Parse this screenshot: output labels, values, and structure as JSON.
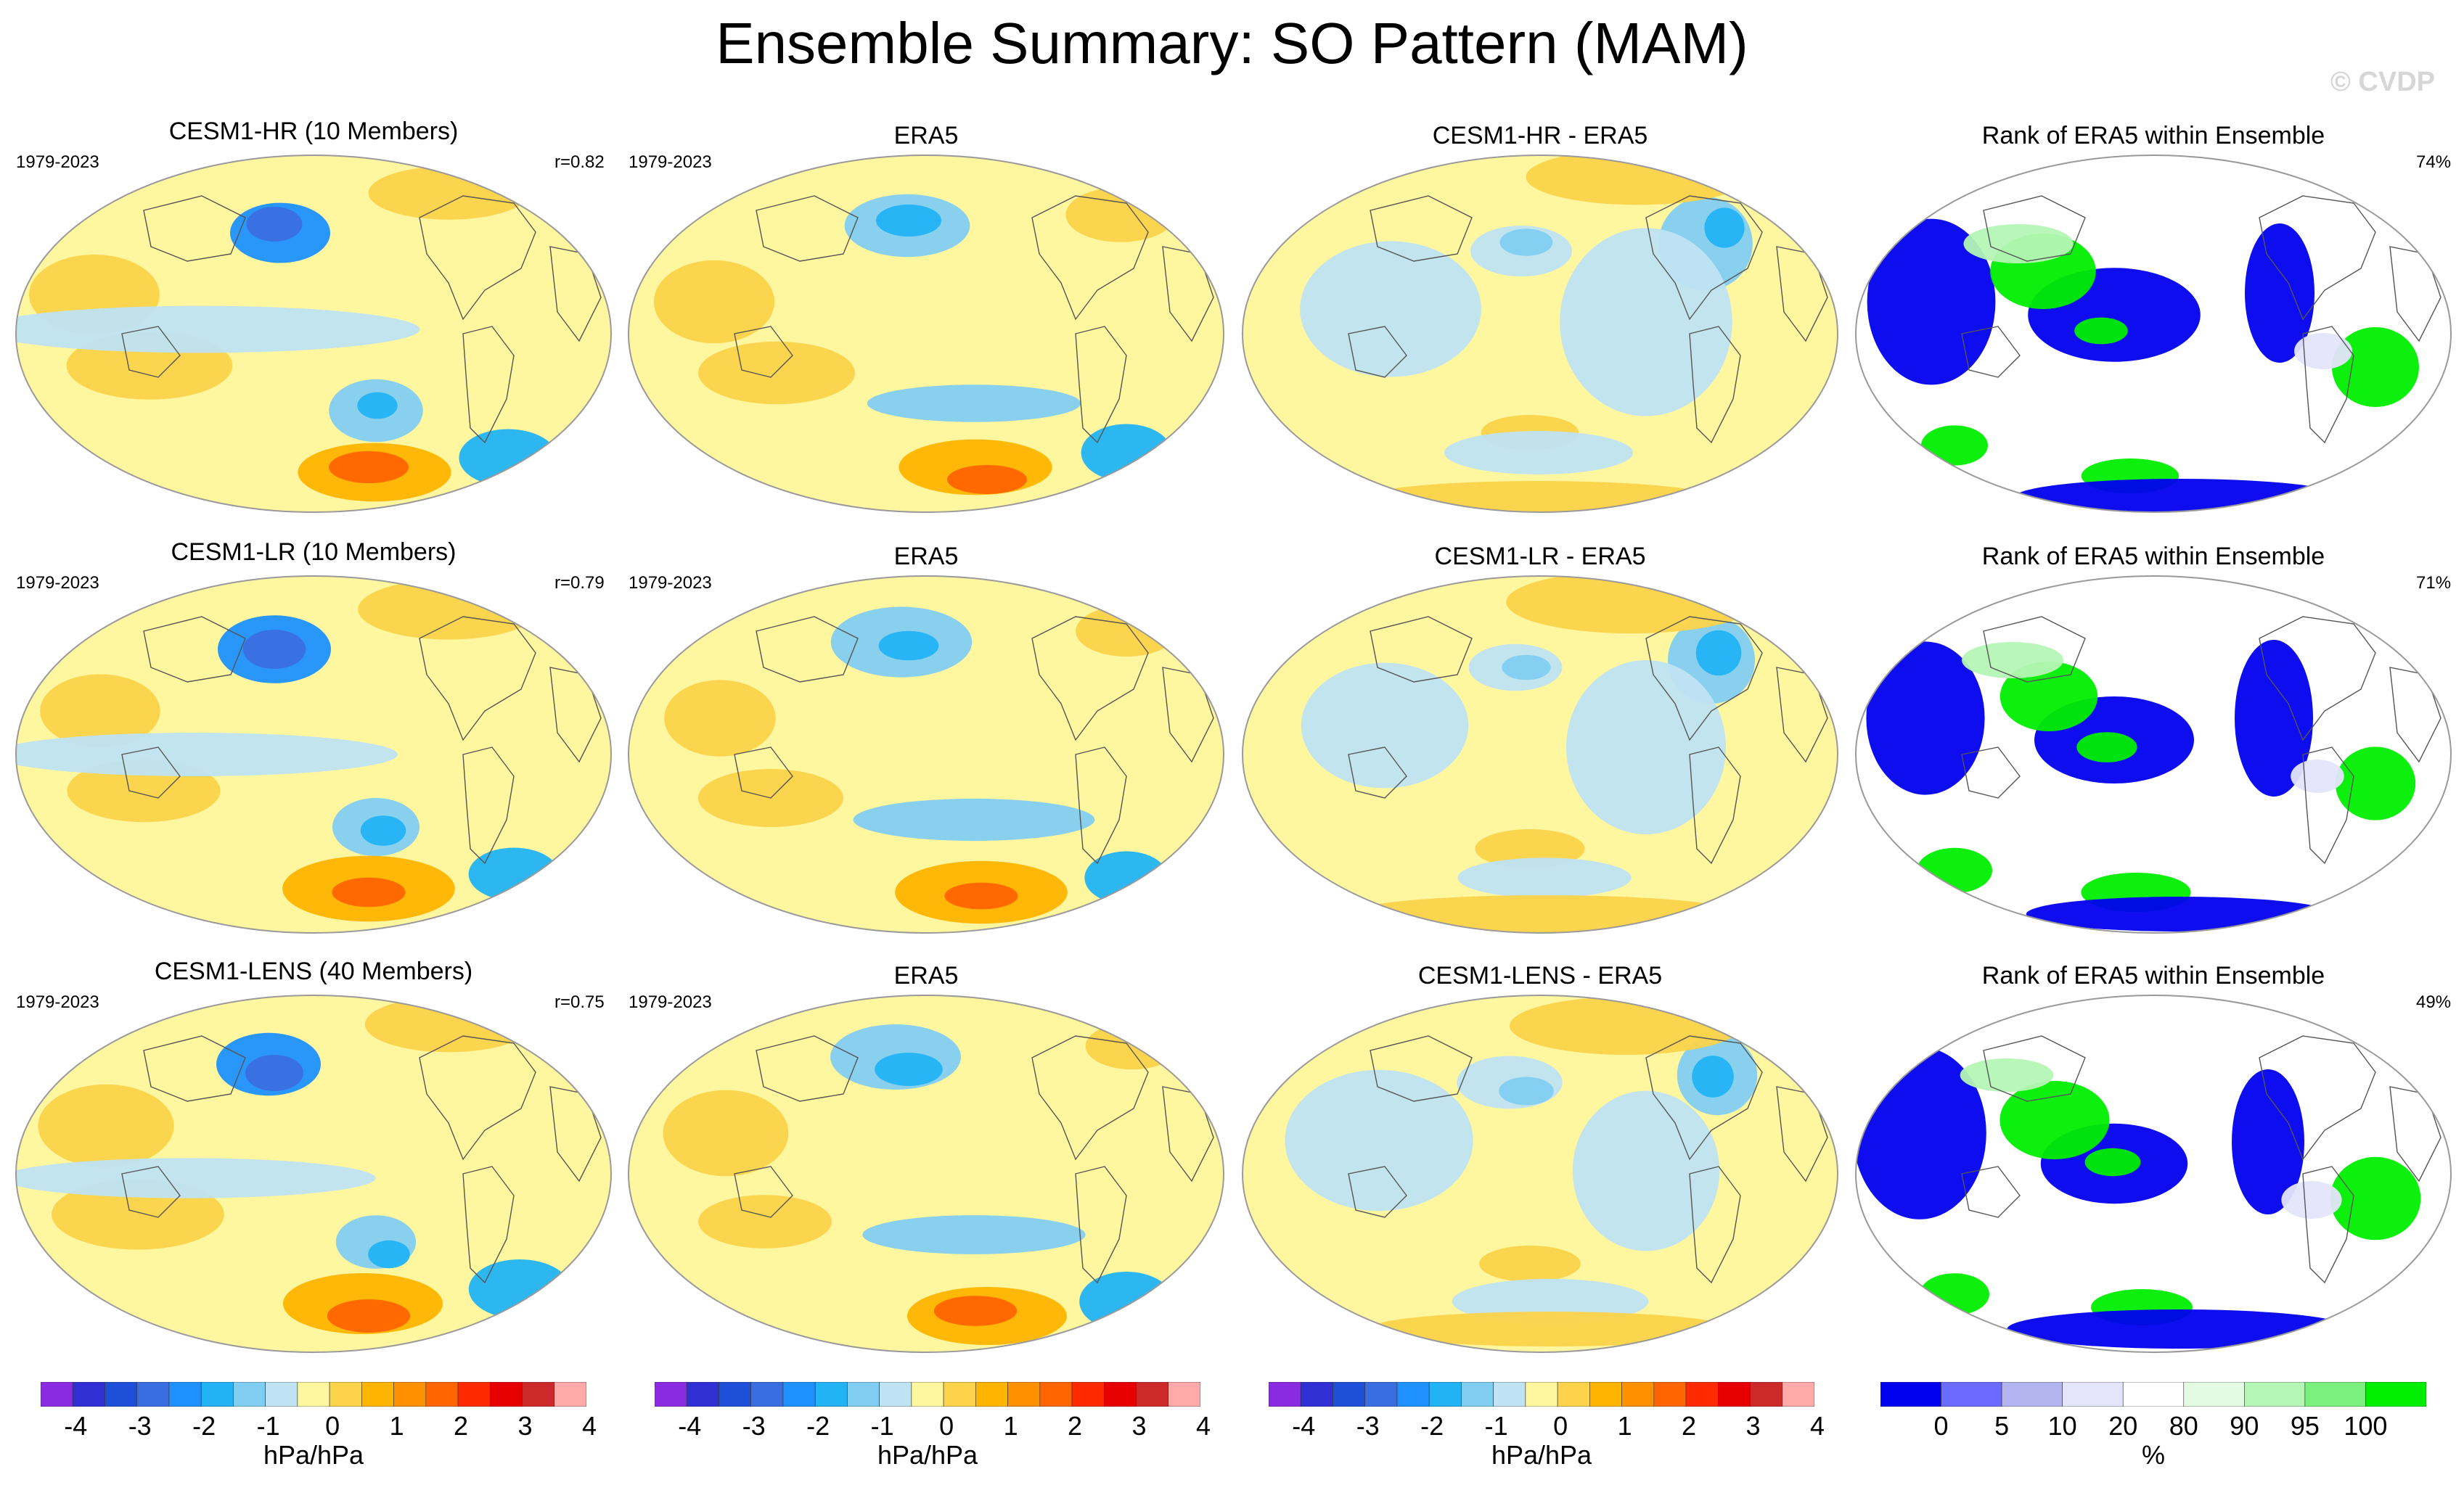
{
  "title": "Ensemble Summary: SO Pattern (MAM)",
  "watermark": "© CVDP",
  "period": "1979-2023",
  "rows": [
    {
      "model": "CESM1-HR (10 Members)",
      "obs": "ERA5",
      "diff": "CESM1-HR - ERA5",
      "rank": "Rank of ERA5 within Ensemble",
      "r": "r=0.82",
      "pct": "74%"
    },
    {
      "model": "CESM1-LR (10 Members)",
      "obs": "ERA5",
      "diff": "CESM1-LR - ERA5",
      "rank": "Rank of ERA5 within Ensemble",
      "r": "r=0.79",
      "pct": "71%"
    },
    {
      "model": "CESM1-LENS (40 Members)",
      "obs": "ERA5",
      "diff": "CESM1-LENS - ERA5",
      "rank": "Rank of ERA5 within Ensemble",
      "r": "r=0.75",
      "pct": "49%"
    }
  ],
  "colorbar": {
    "units": "hPa/hPa",
    "labels": [
      "-4",
      "-3",
      "-2",
      "-1",
      "0",
      "1",
      "2",
      "3",
      "4"
    ],
    "colors": [
      "#8a2be2",
      "#2f2fd4",
      "#1e4fd8",
      "#3a6ee0",
      "#1e90ff",
      "#22b3f5",
      "#82cdf2",
      "#bfe3f3",
      "#fff6a0",
      "#fcd34a",
      "#ffb400",
      "#ff9100",
      "#ff6400",
      "#ff2a00",
      "#e60000",
      "#cc2a2a",
      "#ffa9a9"
    ]
  },
  "rank_colorbar": {
    "units": "%",
    "labels": [
      "0",
      "5",
      "10",
      "20",
      "80",
      "90",
      "95",
      "100"
    ],
    "colors": [
      "#0000ee",
      "#6a6aff",
      "#b4b4f0",
      "#e4e4fb",
      "#ffffff",
      "#e2fbe2",
      "#b5f5b5",
      "#7cf07c",
      "#00ee00"
    ]
  },
  "colors": {
    "background": "#ffffff",
    "land_outline": "#555555",
    "globe_outline": "#9a9a9a"
  }
}
